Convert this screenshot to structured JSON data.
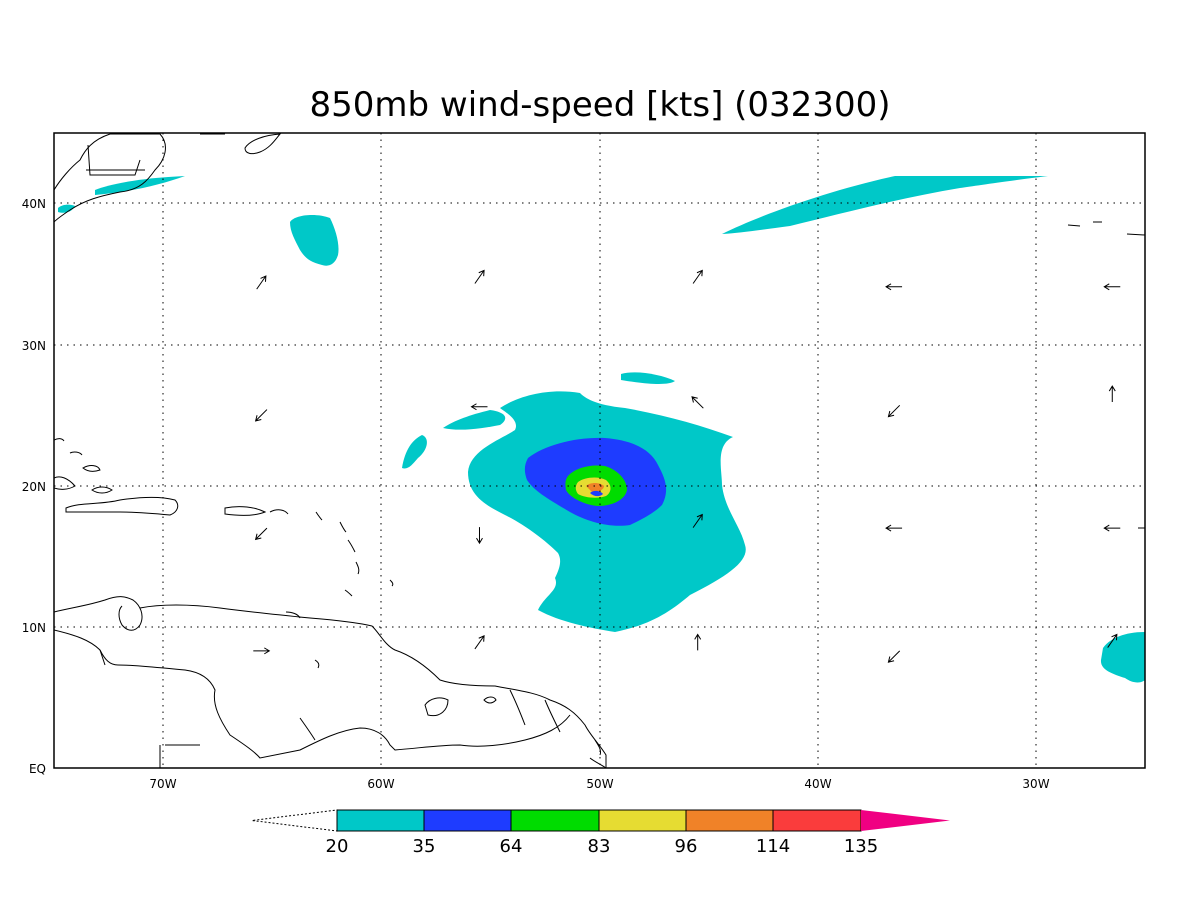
{
  "title": "850mb wind-speed [kts] (032300)",
  "map": {
    "lon_range": [
      -75,
      -25
    ],
    "lat_range": [
      0,
      45
    ],
    "x_tick_labels": [
      {
        "lon": -70,
        "label": "70W"
      },
      {
        "lon": -60,
        "label": "60W"
      },
      {
        "lon": -50,
        "label": "50W"
      },
      {
        "lon": -40,
        "label": "40W"
      },
      {
        "lon": -30,
        "label": "30W"
      }
    ],
    "y_tick_labels": [
      {
        "lat": 0,
        "label": "EQ"
      },
      {
        "lat": 10,
        "label": "10N"
      },
      {
        "lat": 20,
        "label": "20N"
      },
      {
        "lat": 30,
        "label": "30N"
      },
      {
        "lat": 40,
        "label": "40N"
      }
    ],
    "grid": "dotted every 10 degrees",
    "storm_center": {
      "lon": -50.0,
      "lat": 20.0
    }
  },
  "colorbar": {
    "levels": [
      "20",
      "35",
      "64",
      "83",
      "96",
      "114",
      "135"
    ],
    "colors": [
      "#00c8c8",
      "#1e3cff",
      "#00dc00",
      "#e6dc32",
      "#f08228",
      "#fa3c3c",
      "#f00082"
    ],
    "below_min": "white (open triangle)",
    "above_max": "#f00082"
  },
  "colors": {
    "c20": "#00c8c8",
    "c35": "#1e3cff",
    "c64": "#00dc00",
    "c83": "#e6dc32",
    "c96": "#f08228",
    "land_outline": "#000000"
  },
  "vectors": [
    {
      "lon": -65.5,
      "lat": 34.4,
      "dir": "NE"
    },
    {
      "lon": -55.5,
      "lat": 34.8,
      "dir": "NE"
    },
    {
      "lon": -45.5,
      "lat": 34.8,
      "dir": "NE"
    },
    {
      "lon": -36.5,
      "lat": 34.1,
      "dir": "W"
    },
    {
      "lon": -26.5,
      "lat": 34.1,
      "dir": "W"
    },
    {
      "lon": -65.5,
      "lat": 25.0,
      "dir": "SW"
    },
    {
      "lon": -55.5,
      "lat": 25.6,
      "dir": "W"
    },
    {
      "lon": -45.5,
      "lat": 25.9,
      "dir": "NW"
    },
    {
      "lon": -36.5,
      "lat": 25.3,
      "dir": "SW"
    },
    {
      "lon": -26.5,
      "lat": 26.5,
      "dir": "N"
    },
    {
      "lon": -65.5,
      "lat": 16.6,
      "dir": "SW"
    },
    {
      "lon": -55.5,
      "lat": 16.5,
      "dir": "S"
    },
    {
      "lon": -45.5,
      "lat": 17.5,
      "dir": "NE"
    },
    {
      "lon": -36.5,
      "lat": 17.0,
      "dir": "W"
    },
    {
      "lon": -26.5,
      "lat": 17.0,
      "dir": "W"
    },
    {
      "lon": -65.5,
      "lat": 8.3,
      "dir": "E"
    },
    {
      "lon": -55.5,
      "lat": 8.9,
      "dir": "NE"
    },
    {
      "lon": -45.5,
      "lat": 8.9,
      "dir": "N"
    },
    {
      "lon": -36.5,
      "lat": 7.9,
      "dir": "SW"
    },
    {
      "lon": -26.5,
      "lat": 9.0,
      "dir": "NE"
    }
  ]
}
